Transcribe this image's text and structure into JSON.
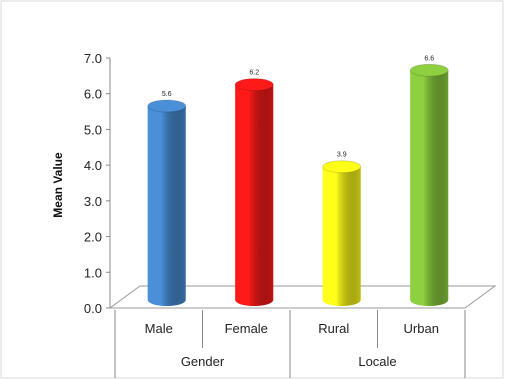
{
  "chart_data": {
    "type": "bar",
    "ylabel": "Mean Value",
    "ylim": [
      0,
      7
    ],
    "yticks": [
      "0.0",
      "1.0",
      "2.0",
      "3.0",
      "4.0",
      "5.0",
      "6.0",
      "7.0"
    ],
    "groups": [
      {
        "name": "Gender",
        "categories": [
          "Male",
          "Female"
        ]
      },
      {
        "name": "Locale",
        "categories": [
          "Rural",
          "Urban"
        ]
      }
    ],
    "categories": [
      "Male",
      "Female",
      "Rural",
      "Urban"
    ],
    "values": [
      5.6,
      6.2,
      3.9,
      6.6
    ],
    "data_labels": [
      "5.6",
      "6.2",
      "3.9",
      "6.6"
    ],
    "colors": [
      "#4a90d9",
      "#ff1a1a",
      "#ffff1a",
      "#8ed040"
    ],
    "bar_style": "3d-cylinder",
    "grid": false,
    "legend": "none"
  }
}
